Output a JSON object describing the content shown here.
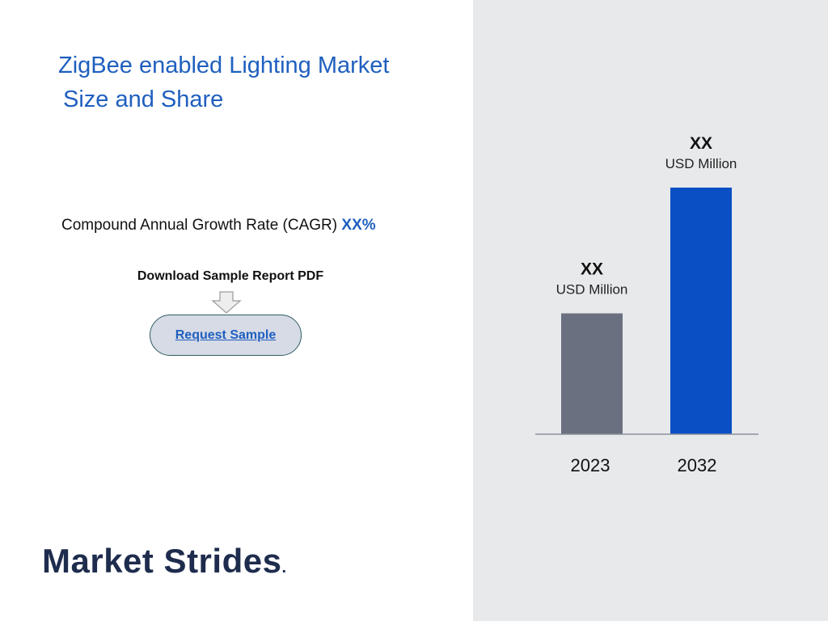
{
  "title": {
    "line1": "ZigBee enabled Lighting Market",
    "line2": "Size and Share"
  },
  "cagr": {
    "label": "Compound Annual Growth Rate (CAGR)",
    "value": "XX%"
  },
  "download": {
    "label": "Download Sample Report PDF",
    "arrow_icon": "down-arrow-icon"
  },
  "request_button": {
    "label": "Request Sample"
  },
  "logo": {
    "text": "Market Strides",
    "dot": "."
  },
  "colors": {
    "title": "#1f5fbf",
    "panel_bg": "#e8e9eb",
    "bar_2023": "#6b7080",
    "bar_2032": "#0a4fc4",
    "logo": "#1e2c4d"
  },
  "chart_data": {
    "type": "bar",
    "categories": [
      "2023",
      "2032"
    ],
    "values": [
      49,
      100
    ],
    "value_labels": [
      "XX",
      "XX"
    ],
    "unit_labels": [
      "USD Million",
      "USD Million"
    ],
    "bar_colors": [
      "#6b7080",
      "#0a4fc4"
    ],
    "ylim": [
      0,
      100
    ],
    "grid": false,
    "title": "",
    "xlabel": "",
    "ylabel": ""
  }
}
